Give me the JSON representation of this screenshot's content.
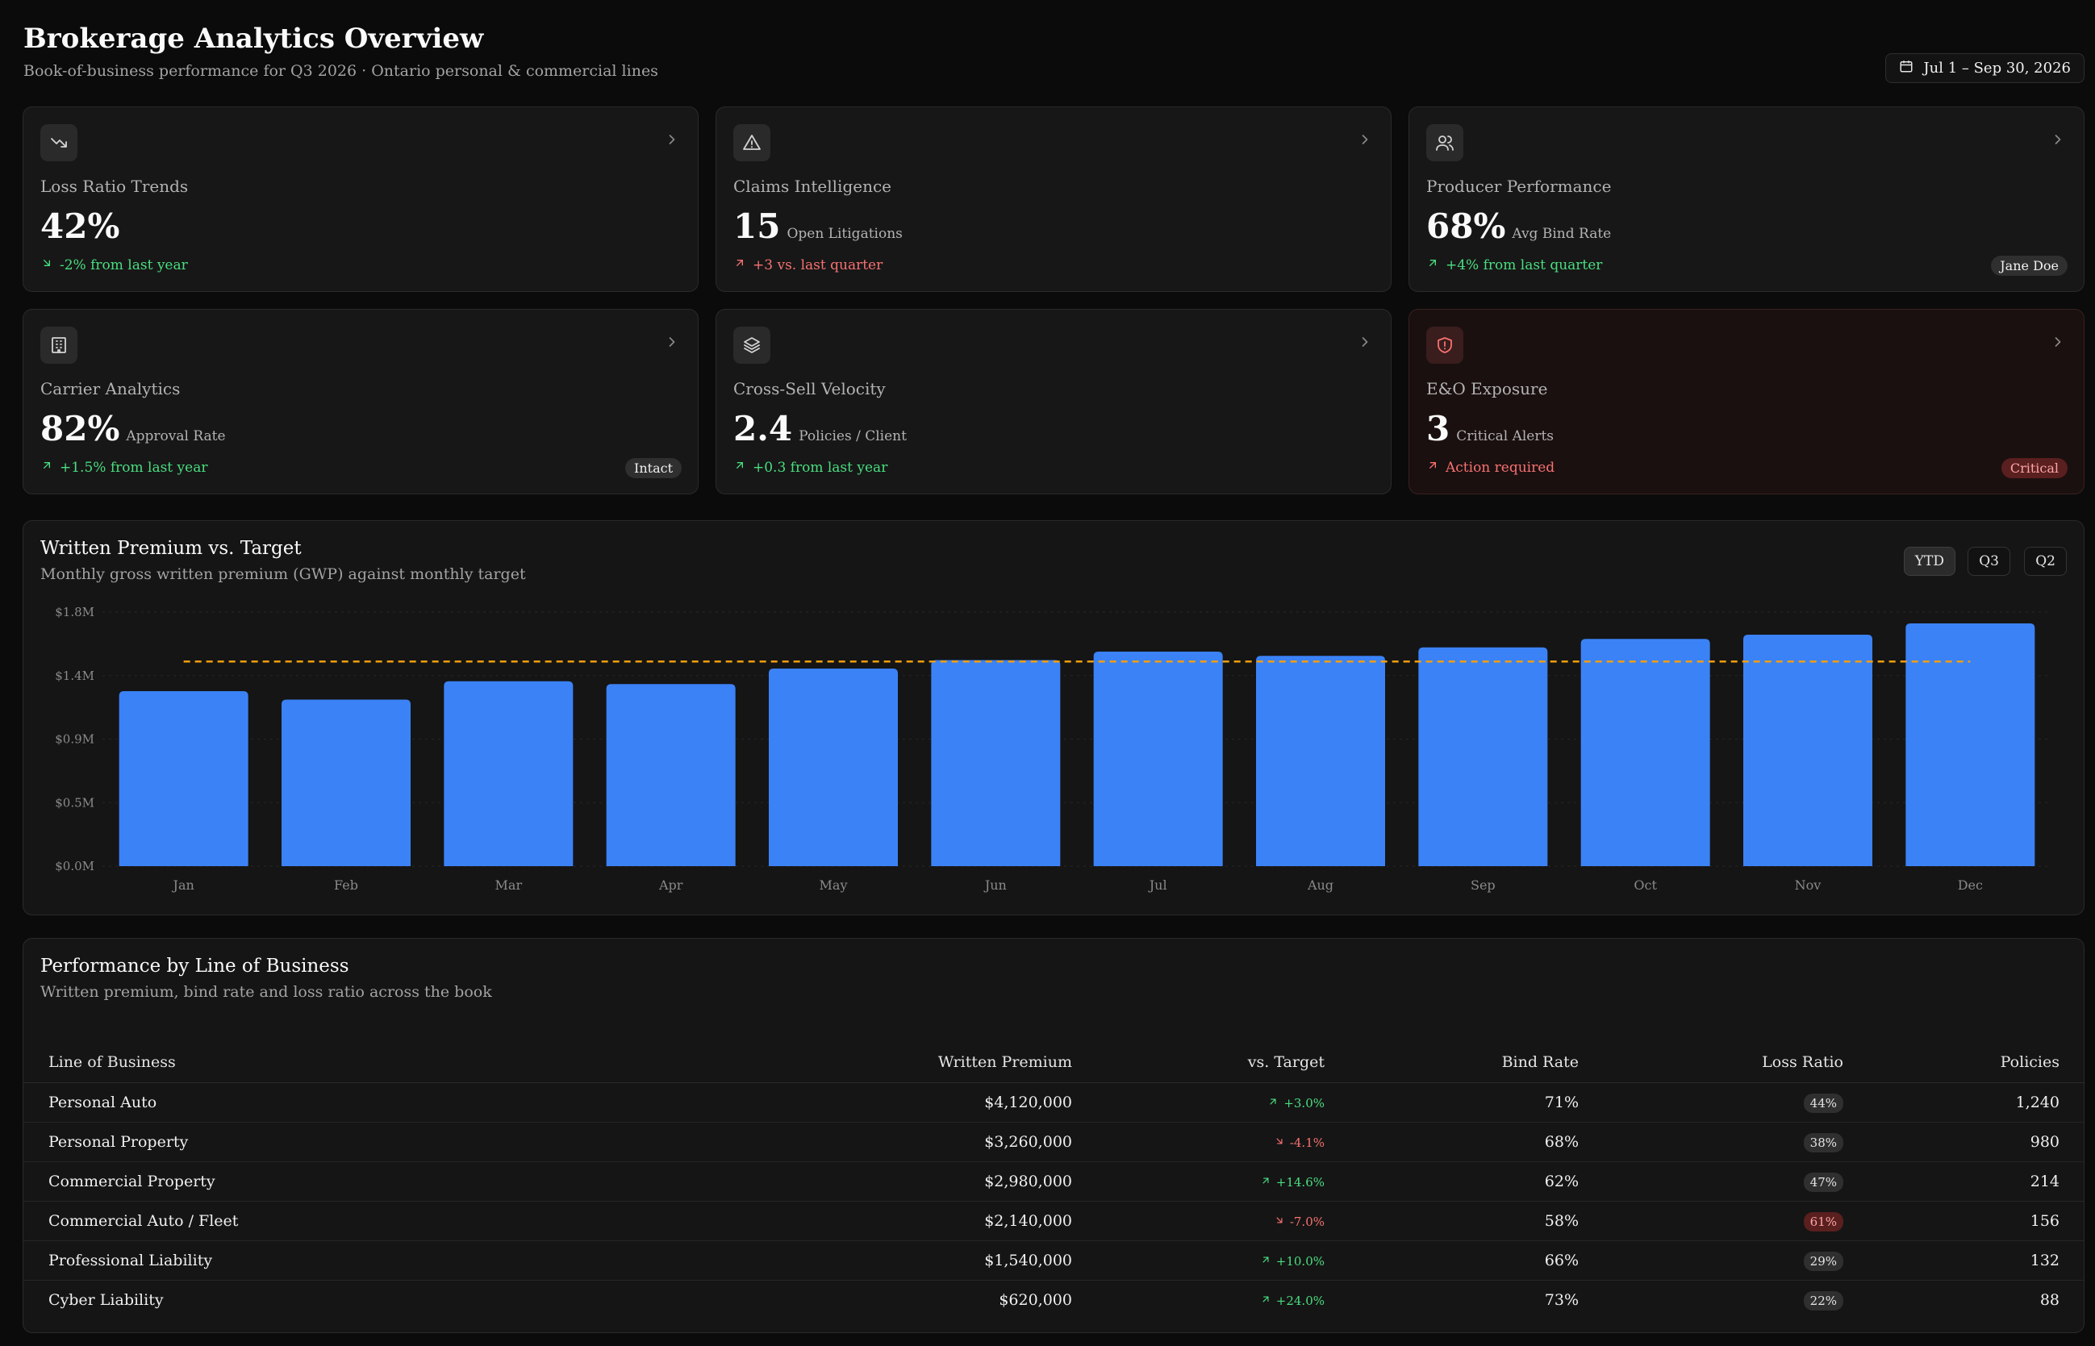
{
  "header": {
    "title": "Brokerage Analytics Overview",
    "subtitle": "Book-of-business performance for Q3 2026 · Ontario personal & commercial lines",
    "date_range": "Jul 1 – Sep 30, 2026"
  },
  "cards": [
    {
      "label": "Loss Ratio Trends",
      "value": "42%",
      "unit": "",
      "trend": "-2% from last year",
      "trend_icon": "arrow-down-right-icon",
      "icon": "trending-down-icon",
      "badge": ""
    },
    {
      "label": "Claims Intelligence",
      "value": "15",
      "unit": "Open Litigations",
      "trend": "+3 vs. last quarter",
      "trend_icon": "arrow-up-right-icon",
      "icon": "alert-triangle-icon",
      "badge": ""
    },
    {
      "label": "Producer Performance",
      "value": "68%",
      "unit": "Avg Bind Rate",
      "trend": "+4% from last quarter",
      "trend_icon": "arrow-up-right-icon",
      "icon": "users-icon",
      "badge": "Jane Doe"
    },
    {
      "label": "Carrier Analytics",
      "value": "82%",
      "unit": "Approval Rate",
      "trend": "+1.5% from last year",
      "trend_icon": "arrow-up-right-icon",
      "icon": "building-icon",
      "badge": "Intact"
    },
    {
      "label": "Cross-Sell Velocity",
      "value": "2.4",
      "unit": "Policies / Client",
      "trend": "+0.3 from last year",
      "trend_icon": "arrow-up-right-icon",
      "icon": "layers-icon",
      "badge": ""
    },
    {
      "label": "E&O Exposure",
      "value": "3",
      "unit": "Critical Alerts",
      "trend": "Action required",
      "trend_icon": "arrow-up-right-icon",
      "icon": "shield-alert-icon",
      "badge": "Critical"
    }
  ],
  "chart": {
    "title": "Written Premium vs. Target",
    "subtitle": "Monthly gross written premium (GWP) against monthly target",
    "ranges": [
      "YTD",
      "Q3",
      "Q2"
    ],
    "active_range": "YTD"
  },
  "chart_data": {
    "type": "bar",
    "categories": [
      "Jan",
      "Feb",
      "Mar",
      "Apr",
      "May",
      "Jun",
      "Jul",
      "Aug",
      "Sep",
      "Oct",
      "Nov",
      "Dec"
    ],
    "series": [
      {
        "values": [
          1.24,
          1.18,
          1.31,
          1.29,
          1.4,
          1.46,
          1.52,
          1.49,
          1.55,
          1.61,
          1.64,
          1.72
        ]
      }
    ],
    "target": 1.45,
    "y_tick_labels": [
      "$0.0M",
      "$0.5M",
      "$0.9M",
      "$1.4M",
      "$1.8M"
    ],
    "ylim": [
      0,
      1.8
    ],
    "grid": true,
    "colors": {
      "bar": "#3b82f6",
      "target": "#f59e0b"
    }
  },
  "table": {
    "title": "Performance by Line of Business",
    "subtitle": "Written premium, bind rate and loss ratio across the book",
    "headers": [
      "Line of Business",
      "Written Premium",
      "vs. Target",
      "Bind Rate",
      "Loss Ratio",
      "Policies"
    ],
    "rows": [
      {
        "lob": "Personal Auto",
        "premium": "$4,120,000",
        "delta": "+3.0%",
        "delta_dir": "up",
        "bind": "71%",
        "loss": "44%",
        "loss_high": false,
        "policies": "1,240"
      },
      {
        "lob": "Personal Property",
        "premium": "$3,260,000",
        "delta": "-4.1%",
        "delta_dir": "down",
        "bind": "68%",
        "loss": "38%",
        "loss_high": false,
        "policies": "980"
      },
      {
        "lob": "Commercial Property",
        "premium": "$2,980,000",
        "delta": "+14.6%",
        "delta_dir": "up",
        "bind": "62%",
        "loss": "47%",
        "loss_high": false,
        "policies": "214"
      },
      {
        "lob": "Commercial Auto / Fleet",
        "premium": "$2,140,000",
        "delta": "-7.0%",
        "delta_dir": "down",
        "bind": "58%",
        "loss": "61%",
        "loss_high": true,
        "policies": "156"
      },
      {
        "lob": "Professional Liability",
        "premium": "$1,540,000",
        "delta": "+10.0%",
        "delta_dir": "up",
        "bind": "66%",
        "loss": "29%",
        "loss_high": false,
        "policies": "132"
      },
      {
        "lob": "Cyber Liability",
        "premium": "$620,000",
        "delta": "+24.0%",
        "delta_dir": "up",
        "bind": "73%",
        "loss": "22%",
        "loss_high": false,
        "policies": "88"
      }
    ]
  }
}
